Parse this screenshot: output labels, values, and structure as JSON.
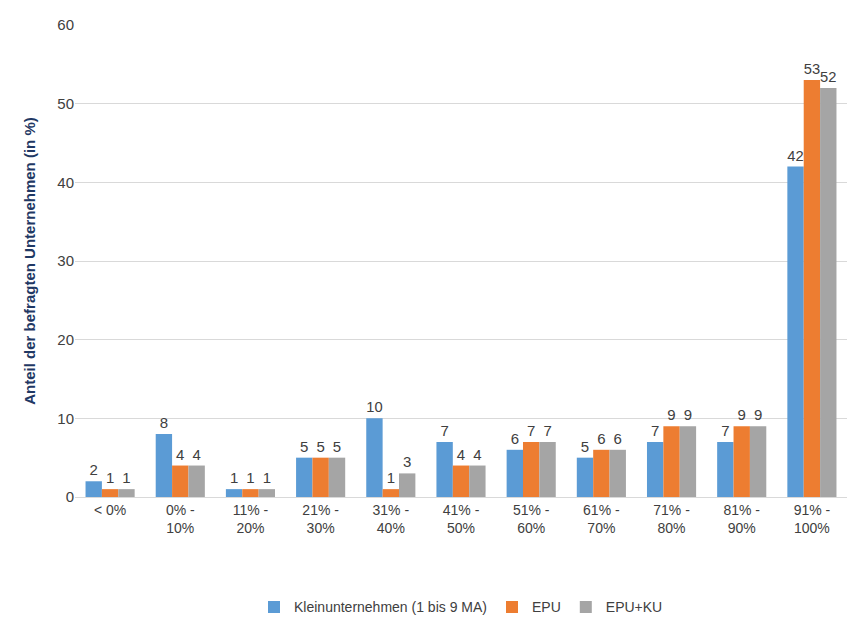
{
  "chart_data": {
    "type": "bar",
    "y_label": "Anteil der befragten Unternehmen (in %)",
    "categories": [
      "< 0%",
      "0% - 10%",
      "11% - 20%",
      "21% - 30%",
      "31% - 40%",
      "41% - 50%",
      "51% - 60%",
      "61% - 70%",
      "71% - 80%",
      "81% - 90%",
      "91% - 100%"
    ],
    "series": [
      {
        "name": "Kleinunternehmen (1 bis 9 MA)",
        "color": "#5B9BD5",
        "values": [
          2,
          8,
          1,
          5,
          10,
          7,
          6,
          5,
          7,
          7,
          42
        ]
      },
      {
        "name": "EPU",
        "color": "#ED7D31",
        "values": [
          1,
          4,
          1,
          5,
          1,
          4,
          7,
          6,
          9,
          9,
          53
        ]
      },
      {
        "name": "EPU+KU",
        "color": "#A5A5A5",
        "values": [
          1,
          4,
          1,
          5,
          3,
          4,
          7,
          6,
          9,
          9,
          52
        ]
      }
    ],
    "ylim": [
      0,
      60
    ],
    "yticks": [
      0,
      10,
      20,
      30,
      40,
      50,
      60
    ],
    "grid": true,
    "legend": "bottom",
    "data_labels": true
  }
}
